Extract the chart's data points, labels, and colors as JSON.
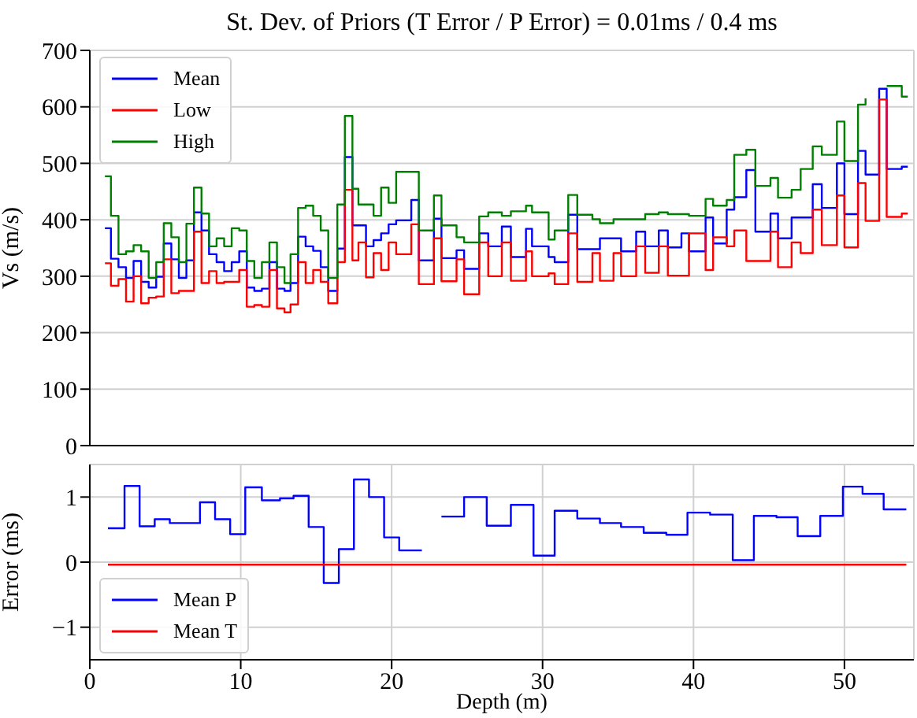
{
  "chart_data": [
    {
      "type": "step",
      "title": "St. Dev. of Priors (T Error / P Error) = 0.01ms / 0.4 ms",
      "ylabel": "Vs (m/s)",
      "x": [
        1.0,
        1.4,
        1.9,
        2.4,
        2.9,
        3.4,
        3.9,
        4.4,
        4.9,
        5.4,
        5.9,
        6.4,
        6.9,
        7.4,
        7.9,
        8.4,
        8.9,
        9.4,
        9.9,
        10.4,
        10.9,
        11.4,
        11.9,
        12.4,
        12.9,
        13.3,
        13.8,
        14.3,
        14.8,
        15.3,
        15.8,
        16.4,
        16.9,
        17.4,
        17.8,
        18.3,
        18.8,
        19.3,
        19.8,
        20.3,
        21.3,
        21.8,
        22.8,
        23.3,
        24.3,
        24.8,
        25.8,
        26.4,
        27.3,
        27.9,
        28.9,
        29.3,
        30.4,
        30.8,
        31.7,
        32.3,
        33.3,
        33.8,
        34.7,
        35.2,
        36.2,
        36.8,
        37.7,
        38.3,
        39.2,
        39.7,
        40.8,
        41.3,
        42.2,
        42.7,
        43.5,
        44.1,
        45.1,
        45.6,
        46.5,
        47.1,
        47.9,
        48.5,
        49.5,
        50.0,
        50.9,
        51.4,
        52.3,
        52.8,
        53.8,
        54.2
      ],
      "series": [
        {
          "name": "Mean",
          "color": "#0000ff",
          "values": [
            385,
            331,
            316,
            297,
            327,
            290,
            280,
            299,
            358,
            330,
            297,
            328,
            413,
            381,
            339,
            325,
            309,
            325,
            344,
            280,
            274,
            278,
            325,
            278,
            274,
            288,
            370,
            353,
            345,
            316,
            274,
            349,
            511,
            390,
            390,
            353,
            364,
            376,
            392,
            399,
            435,
            328,
            402,
            332,
            346,
            313,
            376,
            353,
            388,
            334,
            384,
            353,
            334,
            325,
            409,
            348,
            348,
            367,
            367,
            344,
            379,
            353,
            381,
            351,
            376,
            344,
            404,
            358,
            418,
            440,
            488,
            379,
            411,
            367,
            404,
            404,
            463,
            421,
            500,
            410,
            522,
            480,
            632,
            490,
            494,
            494
          ]
        },
        {
          "name": "Low",
          "color": "#ff0000",
          "values": [
            323,
            283,
            295,
            255,
            300,
            252,
            262,
            264,
            330,
            270,
            274,
            274,
            379,
            288,
            309,
            288,
            290,
            290,
            311,
            246,
            249,
            246,
            311,
            243,
            236,
            250,
            325,
            288,
            311,
            290,
            252,
            325,
            453,
            328,
            360,
            298,
            341,
            311,
            360,
            339,
            392,
            286,
            367,
            291,
            330,
            268,
            360,
            300,
            360,
            292,
            344,
            300,
            305,
            286,
            376,
            290,
            341,
            292,
            341,
            300,
            353,
            306,
            353,
            301,
            301,
            376,
            311,
            369,
            353,
            381,
            327,
            327,
            379,
            316,
            360,
            341,
            418,
            355,
            443,
            351,
            465,
            398,
            613,
            405,
            411,
            411
          ]
        },
        {
          "name": "High",
          "color": "#008000",
          "values": [
            477,
            407,
            339,
            344,
            355,
            344,
            297,
            325,
            394,
            369,
            325,
            393,
            457,
            411,
            353,
            367,
            353,
            385,
            381,
            327,
            297,
            325,
            360,
            316,
            288,
            339,
            421,
            425,
            407,
            381,
            297,
            427,
            584,
            455,
            427,
            427,
            407,
            457,
            430,
            485,
            485,
            381,
            443,
            390,
            369,
            360,
            406,
            413,
            407,
            415,
            425,
            413,
            365,
            381,
            444,
            409,
            401,
            394,
            401,
            401,
            401,
            410,
            413,
            410,
            410,
            407,
            437,
            425,
            435,
            515,
            524,
            460,
            474,
            439,
            453,
            490,
            530,
            515,
            574,
            504,
            604,
            615,
            null,
            637,
            618,
            618
          ]
        }
      ],
      "xlim": [
        0,
        54.6
      ],
      "xticks": [
        0,
        10,
        20,
        30,
        40,
        50
      ],
      "ylim": [
        0,
        700
      ],
      "yticks": [
        0,
        100,
        200,
        300,
        400,
        500,
        600,
        700
      ],
      "grid": true,
      "legend": "top left",
      "tick_labels": "y"
    },
    {
      "type": "step",
      "xlabel": "Depth (m)",
      "ylabel": "Error (ms)",
      "series": [
        {
          "name": "Mean P",
          "color": "#0000ff",
          "x": [
            1.2,
            2.3,
            3.3,
            4.3,
            5.3,
            7.3,
            8.3,
            9.3,
            10.3,
            11.4,
            12.6,
            13.5,
            14.5,
            15.5,
            16.5,
            17.5,
            18.5,
            19.5,
            20.5,
            22.0,
            22.1,
            23.3,
            24.8,
            26.3,
            27.9,
            29.4,
            30.8,
            32.3,
            33.8,
            35.2,
            36.7,
            38.2,
            39.6,
            41.1,
            42.6,
            44.0,
            45.5,
            46.9,
            48.4,
            49.9,
            51.2,
            52.6,
            54.1
          ],
          "values": [
            0.52,
            1.17,
            0.55,
            0.66,
            0.6,
            0.92,
            0.66,
            0.43,
            1.15,
            0.95,
            0.98,
            1.02,
            0.54,
            -0.32,
            0.2,
            1.27,
            1.0,
            0.38,
            0.18,
            0.18,
            null,
            0.7,
            1.0,
            0.56,
            0.88,
            0.1,
            0.79,
            0.67,
            0.6,
            0.54,
            0.45,
            0.42,
            0.76,
            0.73,
            0.03,
            0.71,
            0.69,
            0.4,
            0.71,
            1.16,
            1.05,
            0.81,
            0.81
          ]
        },
        {
          "name": "Mean T",
          "color": "#ff0000",
          "x": [
            1.2,
            54.1
          ],
          "values": [
            -0.04,
            -0.04
          ]
        }
      ],
      "xlim": [
        0,
        54.6
      ],
      "xticks": [
        0,
        10,
        20,
        30,
        40,
        50
      ],
      "ylim": [
        -1.5,
        1.5
      ],
      "yticks": [
        -1,
        0,
        1
      ],
      "grid": true,
      "legend": "bottom left"
    }
  ]
}
